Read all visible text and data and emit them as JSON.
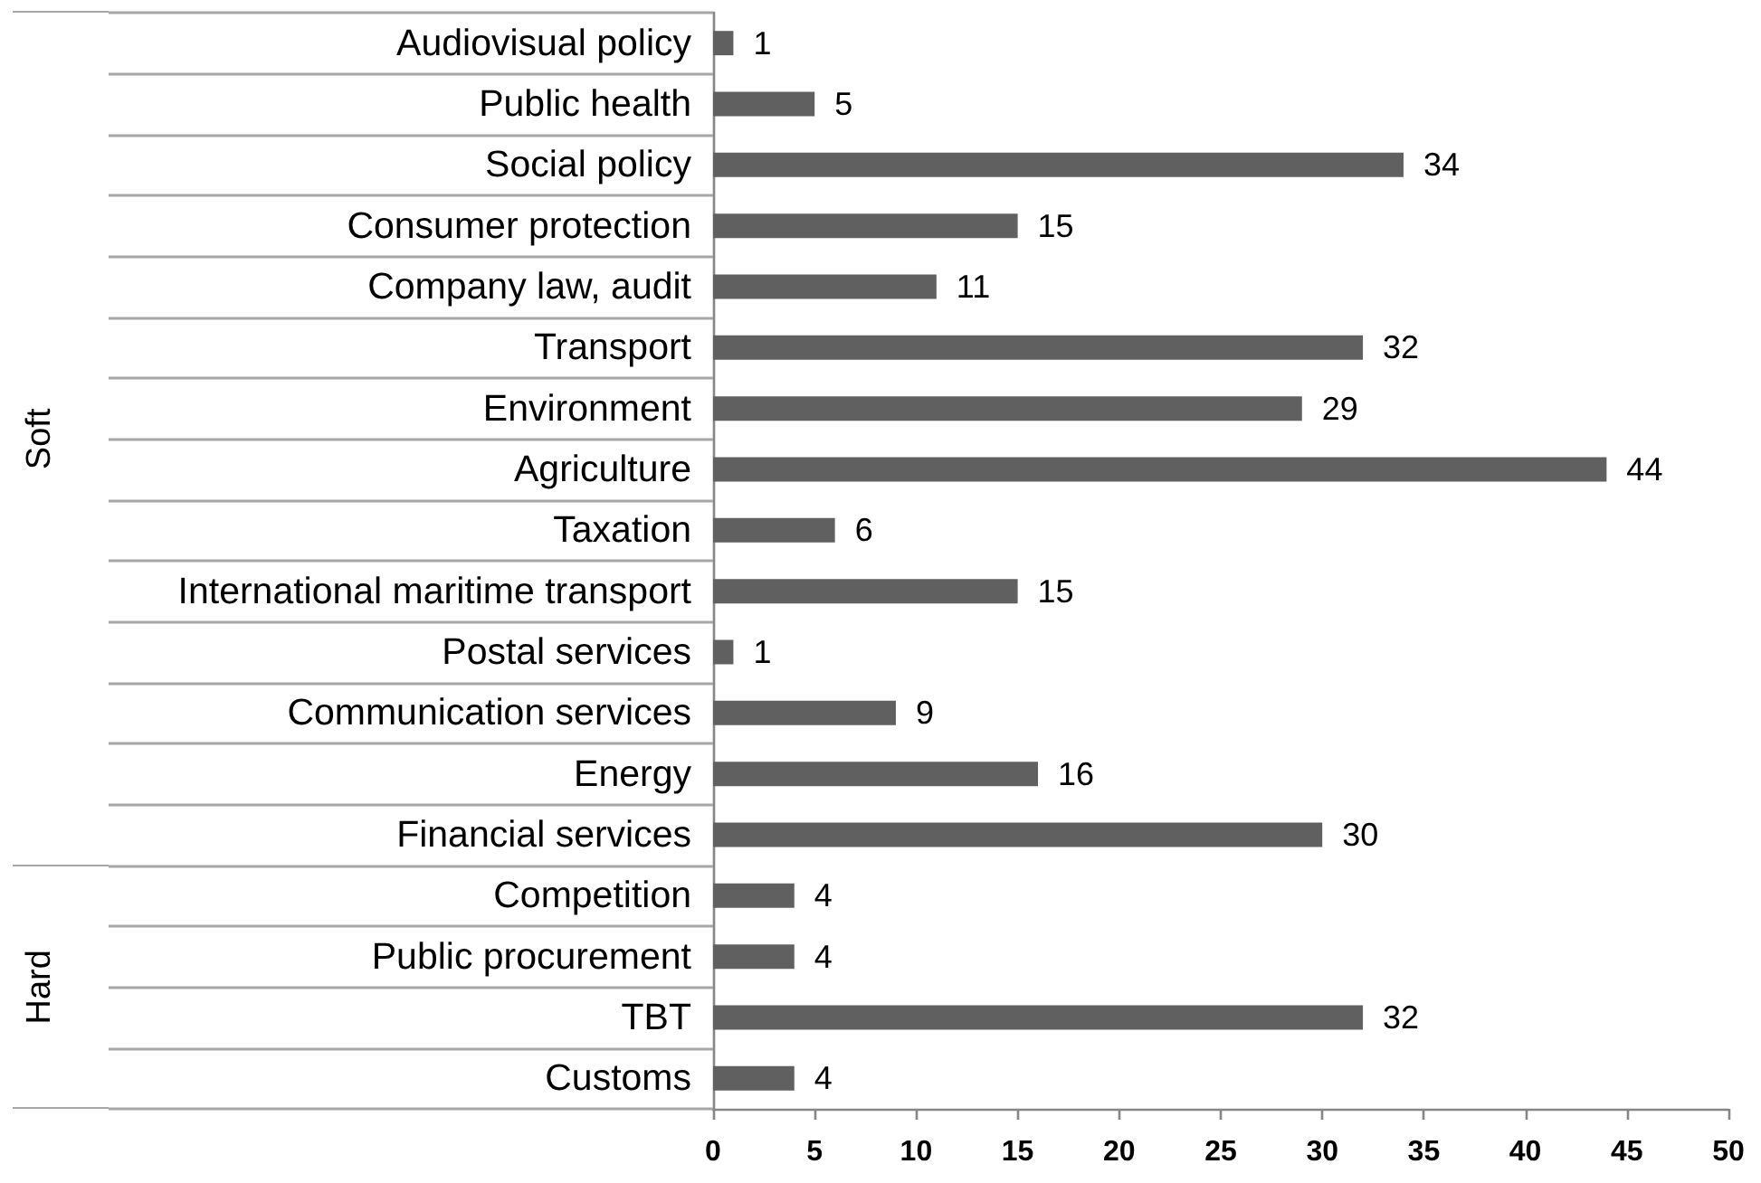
{
  "chart_data": {
    "type": "bar",
    "orientation": "horizontal",
    "categories": [
      "Audiovisual policy",
      "Public health",
      "Social policy",
      "Consumer protection",
      "Company law, audit",
      "Transport",
      "Environment",
      "Agriculture",
      "Taxation",
      "International maritime transport",
      "Postal services",
      "Communication services",
      "Energy",
      "Financial services",
      "Competition",
      "Public procurement",
      "TBT",
      "Customs"
    ],
    "values": [
      1,
      5,
      34,
      15,
      11,
      32,
      29,
      44,
      6,
      15,
      1,
      9,
      16,
      30,
      4,
      4,
      32,
      4
    ],
    "color": "#606060",
    "xlim": [
      0,
      50
    ],
    "xticks": [
      0,
      5,
      10,
      15,
      20,
      25,
      30,
      35,
      40,
      45,
      50
    ],
    "data_labels": true,
    "annotations": [
      "Soft",
      "Hard"
    ]
  }
}
